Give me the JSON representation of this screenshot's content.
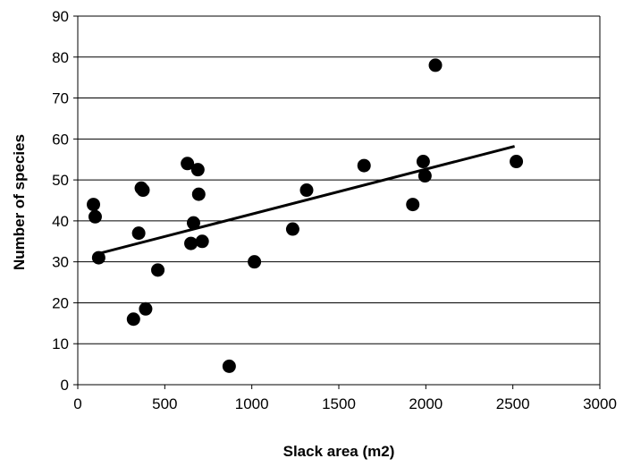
{
  "chart_data": {
    "type": "scatter",
    "title": "",
    "xlabel": "Slack area (m2)",
    "ylabel": "Number of species",
    "xlim": [
      0,
      3000
    ],
    "ylim": [
      0,
      90
    ],
    "xticks": [
      0,
      500,
      1000,
      1500,
      2000,
      2500,
      3000
    ],
    "yticks": [
      0,
      10,
      20,
      30,
      40,
      50,
      60,
      70,
      80,
      90
    ],
    "grid": "horizontal",
    "legend": "none",
    "colors": {
      "points": "#000000",
      "trendline": "#000000",
      "grid": "#000000"
    },
    "series": [
      {
        "points": [
          [
            90,
            44
          ],
          [
            100,
            41
          ],
          [
            120,
            31
          ],
          [
            320,
            16
          ],
          [
            350,
            37
          ],
          [
            365,
            48
          ],
          [
            375,
            47.5
          ],
          [
            390,
            18.5
          ],
          [
            460,
            28
          ],
          [
            630,
            54
          ],
          [
            650,
            34.5
          ],
          [
            665,
            39.5
          ],
          [
            690,
            52.5
          ],
          [
            695,
            46.5
          ],
          [
            715,
            35
          ],
          [
            870,
            4.5
          ],
          [
            1015,
            30
          ],
          [
            1235,
            38
          ],
          [
            1315,
            47.5
          ],
          [
            1645,
            53.5
          ],
          [
            1925,
            44
          ],
          [
            1985,
            54.5
          ],
          [
            1995,
            51
          ],
          [
            2055,
            78
          ],
          [
            2520,
            54.5
          ]
        ]
      }
    ],
    "trendline": {
      "x": [
        100,
        2510
      ],
      "y": [
        31.8,
        58.2
      ]
    }
  }
}
